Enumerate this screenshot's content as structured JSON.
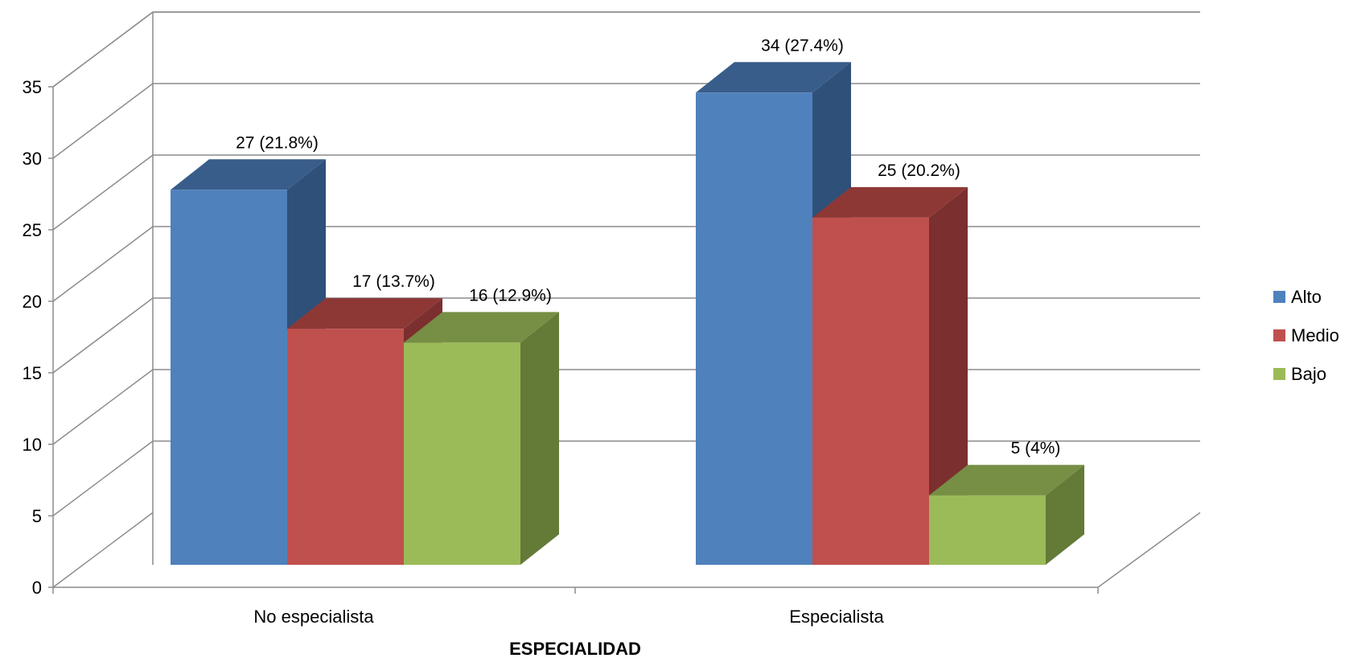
{
  "chart_data": {
    "type": "bar",
    "variant": "3d-clustered-column",
    "title": "",
    "xlabel": "ESPECIALIDAD",
    "ylabel": "",
    "categories": [
      "No especialista",
      "Especialista"
    ],
    "series": [
      {
        "name": "Alto",
        "values": [
          27,
          34
        ],
        "labels": [
          "27 (21.8%)",
          "34 (27.4%)"
        ],
        "color": "#4F81BD",
        "side": "#2F5079",
        "top": "#385D8A"
      },
      {
        "name": "Medio",
        "values": [
          17,
          25
        ],
        "labels": [
          "17 (13.7%)",
          "25 (20.2%)"
        ],
        "color": "#C0504D",
        "side": "#7B2F2F",
        "top": "#8E3836"
      },
      {
        "name": "Bajo",
        "values": [
          16,
          5
        ],
        "labels": [
          "16 (12.9%)",
          "5 (4%)"
        ],
        "color": "#9BBB59",
        "side": "#647A37",
        "top": "#778E45"
      }
    ],
    "ylim": [
      0,
      35
    ],
    "yticks": [
      0,
      5,
      10,
      15,
      20,
      25,
      30,
      35
    ],
    "ytick_labels": [
      "0",
      "5",
      "10",
      "15",
      "20",
      "25",
      "30",
      "35"
    ],
    "grid": true,
    "legend": "right"
  }
}
